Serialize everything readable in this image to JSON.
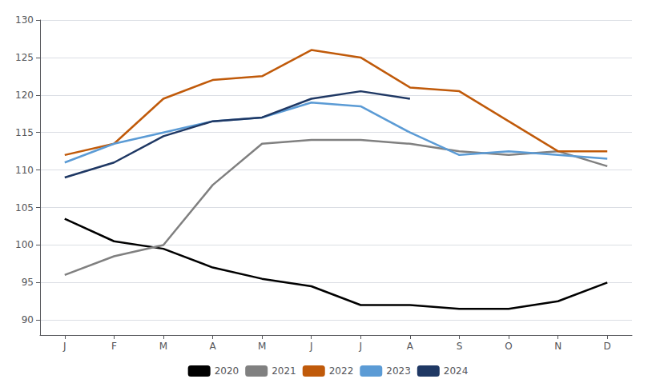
{
  "chart_data": {
    "type": "line",
    "categories": [
      "J",
      "F",
      "M",
      "A",
      "M",
      "J",
      "J",
      "A",
      "S",
      "O",
      "N",
      "D"
    ],
    "series": [
      {
        "name": "2020",
        "color": "#000000",
        "values": [
          103.5,
          100.5,
          99.5,
          97.0,
          95.5,
          94.5,
          92.0,
          92.0,
          91.5,
          91.5,
          92.5,
          95.0
        ]
      },
      {
        "name": "2021",
        "color": "#808080",
        "values": [
          96.0,
          98.5,
          100.0,
          108.0,
          113.5,
          114.0,
          114.0,
          113.5,
          112.5,
          112.0,
          112.5,
          110.5
        ]
      },
      {
        "name": "2022",
        "color": "#C05A0A",
        "values": [
          112.0,
          113.5,
          119.5,
          122.0,
          122.5,
          126.0,
          125.0,
          121.0,
          120.5,
          116.5,
          112.5,
          112.5
        ]
      },
      {
        "name": "2023",
        "color": "#5B9BD5",
        "values": [
          111.0,
          113.5,
          115.0,
          116.5,
          117.0,
          119.0,
          118.5,
          115.0,
          112.0,
          112.5,
          112.0,
          111.5
        ]
      },
      {
        "name": "2024",
        "color": "#1F3864",
        "values": [
          109.0,
          111.0,
          114.5,
          116.5,
          117.0,
          119.5,
          120.5,
          119.5,
          null,
          null,
          null,
          null
        ]
      }
    ],
    "ylim": [
      88,
      130
    ],
    "yticks": [
      90,
      95,
      100,
      105,
      110,
      115,
      120,
      125,
      130
    ],
    "grid": true,
    "legend": "bottom"
  }
}
